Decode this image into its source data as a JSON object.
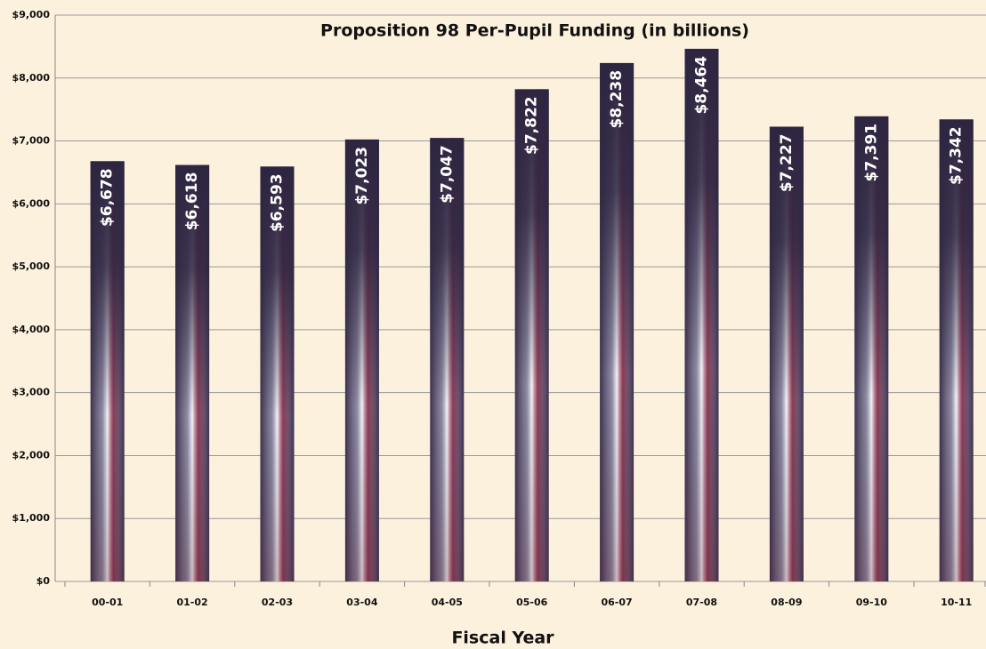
{
  "chart_data": {
    "type": "bar",
    "title": "Proposition 98 Per-Pupil Funding (in billions)",
    "x_label": "Fiscal Year",
    "categories": [
      "00-01",
      "01-02",
      "02-03",
      "03-04",
      "04-05",
      "05-06",
      "06-07",
      "07-08",
      "08-09",
      "09-10",
      "10-11"
    ],
    "values": [
      6678,
      6618,
      6593,
      7023,
      7047,
      7822,
      8238,
      8464,
      7227,
      7391,
      7342
    ],
    "value_labels": [
      "$6,678",
      "$6,618",
      "$6,593",
      "$7,023",
      "$7,047",
      "$7,822",
      "$8,238",
      "$8,464",
      "$7,227",
      "$7,391",
      "$7,342"
    ],
    "color": "#3b3050",
    "ylim": [
      0,
      9000
    ],
    "yticks": [
      {
        "value": 0,
        "label": "$0"
      },
      {
        "value": 1000,
        "label": "$1,000"
      },
      {
        "value": 2000,
        "label": "$2,000"
      },
      {
        "value": 3000,
        "label": "$3,000"
      },
      {
        "value": 4000,
        "label": "$4,000"
      },
      {
        "value": 5000,
        "label": "$5,000"
      },
      {
        "value": 6000,
        "label": "$6,000"
      },
      {
        "value": 7000,
        "label": "$7,000"
      },
      {
        "value": 8000,
        "label": "$8,000"
      },
      {
        "value": 9000,
        "label": "$9,000"
      }
    ],
    "grid": true
  }
}
